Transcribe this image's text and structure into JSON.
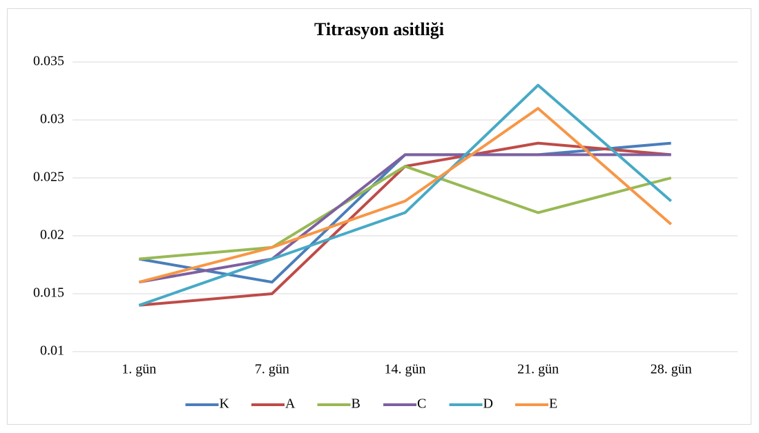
{
  "chart_data": {
    "type": "line",
    "title": "Titrasyon asitliği",
    "categories": [
      "1. gün",
      "7. gün",
      "14. gün",
      "21. gün",
      "28. gün"
    ],
    "series": [
      {
        "name": "K",
        "color": "#4a7ebb",
        "values": [
          0.018,
          0.016,
          0.027,
          0.027,
          0.028
        ]
      },
      {
        "name": "A",
        "color": "#be4b48",
        "values": [
          0.014,
          0.015,
          0.026,
          0.028,
          0.027
        ]
      },
      {
        "name": "B",
        "color": "#98b954",
        "values": [
          0.018,
          0.019,
          0.026,
          0.022,
          0.025
        ]
      },
      {
        "name": "C",
        "color": "#7d60a0",
        "values": [
          0.016,
          0.018,
          0.027,
          0.027,
          0.027
        ]
      },
      {
        "name": "D",
        "color": "#46aac5",
        "values": [
          0.014,
          0.018,
          0.022,
          0.033,
          0.023
        ]
      },
      {
        "name": "E",
        "color": "#f79646",
        "values": [
          0.016,
          0.019,
          0.023,
          0.031,
          0.021
        ]
      }
    ],
    "ylim": [
      0.01,
      0.035
    ],
    "yticks": [
      0.01,
      0.015,
      0.02,
      0.025,
      0.03,
      0.035
    ],
    "grid": true,
    "legend": "bottom"
  }
}
